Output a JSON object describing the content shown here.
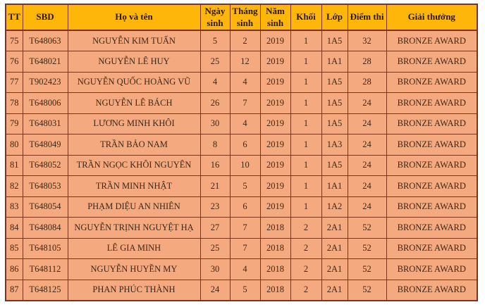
{
  "colors": {
    "header_bg": "#FFB60A",
    "row_bg": "#F5A97E",
    "border": "#7E3418",
    "header_text": "#2B1803",
    "cell_text": "#3C2817"
  },
  "table": {
    "columns": [
      {
        "key": "tt",
        "label": "TT",
        "width": 24
      },
      {
        "key": "sbd",
        "label": "SBD",
        "width": 64
      },
      {
        "key": "name",
        "label": "Họ và tên",
        "width": 188
      },
      {
        "key": "day",
        "label": "Ngày sinh",
        "width": 42
      },
      {
        "key": "month",
        "label": "Tháng sinh",
        "width": 43
      },
      {
        "key": "year",
        "label": "Năm sinh",
        "width": 43
      },
      {
        "key": "khoi",
        "label": "Khối",
        "width": 44
      },
      {
        "key": "lop",
        "label": "Lớp",
        "width": 37
      },
      {
        "key": "score",
        "label": "Điểm thi",
        "width": 55
      },
      {
        "key": "award",
        "label": "Giải thưởng",
        "width": 129
      }
    ],
    "rows": [
      [
        "75",
        "T648063",
        "NGUYỄN KIM TUẤN",
        "5",
        "2",
        "2019",
        "1",
        "1A5",
        "32",
        "BRONZE AWARD"
      ],
      [
        "76",
        "T648021",
        "NGUYỄN LÊ HUY",
        "25",
        "12",
        "2019",
        "1",
        "1A1",
        "28",
        "BRONZE AWARD"
      ],
      [
        "77",
        "T902423",
        "NGUYỄN QUỐC HOÀNG VŨ",
        "4",
        "4",
        "2019",
        "1",
        "1A5",
        "28",
        "BRONZE AWARD"
      ],
      [
        "78",
        "T648006",
        "NGUYỄN LÊ BÁCH",
        "26",
        "7",
        "2019",
        "1",
        "1A5",
        "24",
        "BRONZE AWARD"
      ],
      [
        "79",
        "T648031",
        "LƯƠNG MINH KHÔI",
        "30",
        "4",
        "2019",
        "1",
        "1A5",
        "24",
        "BRONZE AWARD"
      ],
      [
        "80",
        "T648049",
        "TRẦN BẢO NAM",
        "8",
        "6",
        "2019",
        "1",
        "1A3",
        "24",
        "BRONZE AWARD"
      ],
      [
        "81",
        "T648052",
        "TRẦN NGỌC KHÔI NGUYÊN",
        "16",
        "10",
        "2019",
        "1",
        "1A5",
        "24",
        "BRONZE AWARD"
      ],
      [
        "82",
        "T648053",
        "TRẦN MINH NHẬT",
        "21",
        "5",
        "2019",
        "1",
        "1A1",
        "24",
        "BRONZE AWARD"
      ],
      [
        "83",
        "T648054",
        "PHẠM DIỆU AN NHIÊN",
        "23",
        "6",
        "2019",
        "1",
        "1A2",
        "24",
        "BRONZE AWARD"
      ],
      [
        "84",
        "T648084",
        "NGUYỄN TRỊNH NGUYỆT HẠ",
        "27",
        "7",
        "2018",
        "2",
        "2A1",
        "52",
        "BRONZE AWARD"
      ],
      [
        "85",
        "T648105",
        "LÊ GIA MINH",
        "25",
        "7",
        "2018",
        "2",
        "2A1",
        "52",
        "BRONZE AWARD"
      ],
      [
        "86",
        "T648112",
        "NGUYỄN HUYỀN MY",
        "30",
        "4",
        "2018",
        "2",
        "2A1",
        "52",
        "BRONZE AWARD"
      ],
      [
        "87",
        "T648125",
        "PHAN PHÚC THÀNH",
        "24",
        "5",
        "2018",
        "2",
        "2A1",
        "52",
        "BRONZE AWARD"
      ]
    ]
  }
}
